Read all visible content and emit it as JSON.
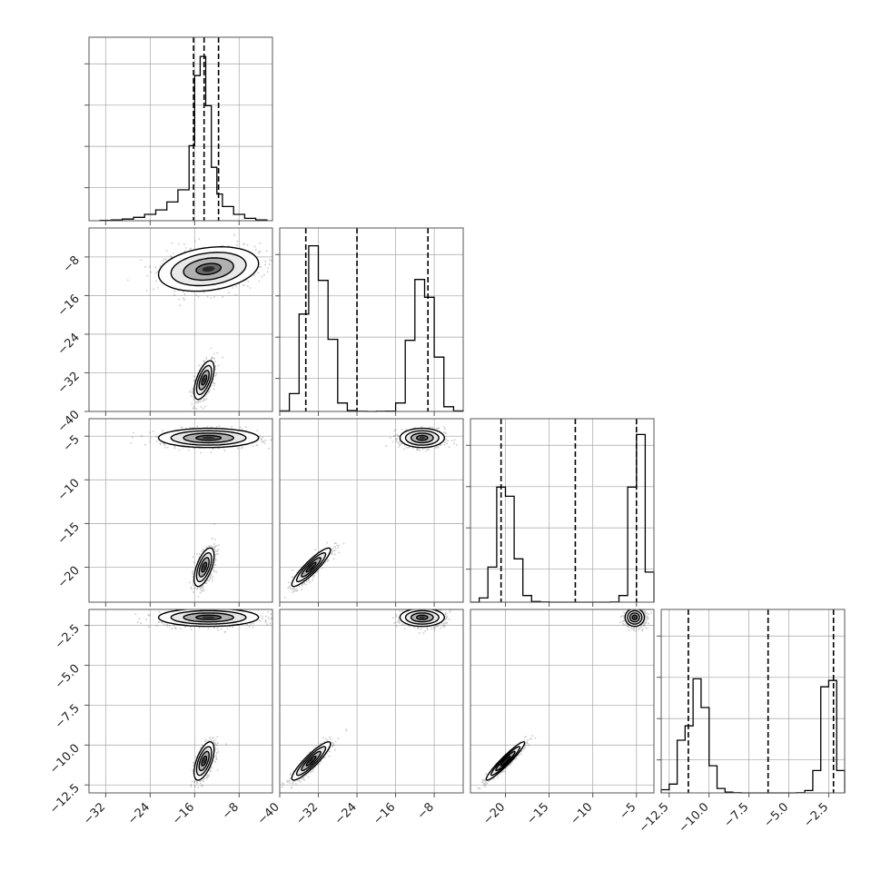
{
  "colors": {
    "frame": "#555555",
    "grid": "#b0b0b0",
    "line": "#000000",
    "scatter": "#303030",
    "fill_levels": [
      "#ffffff",
      "#e8e8e8",
      "#b0b0b0",
      "#6a6a6a",
      "#2a2a2a"
    ]
  },
  "chart_data": {
    "type": "corner",
    "grid": true,
    "parameters": [
      {
        "range": [
          -35,
          -2
        ],
        "ticks": [
          -32,
          -24,
          -16,
          -8
        ],
        "tick_labels": [
          "−32",
          "−24",
          "−16",
          "−8"
        ],
        "quantiles": [
          -16.2,
          -14.3,
          -11.7
        ],
        "histogram": {
          "edges": [
            -33,
            -31,
            -29,
            -27,
            -25,
            -23,
            -21,
            -19,
            -17,
            -16,
            -15,
            -14,
            -13,
            -12,
            -11,
            -9,
            -7,
            -5,
            -3
          ],
          "counts": [
            2,
            5,
            10,
            20,
            38,
            65,
            112,
            185,
            450,
            870,
            985,
            690,
            320,
            160,
            85,
            38,
            14,
            5
          ],
          "ylim": [
            0,
            1100
          ]
        }
      },
      {
        "range": [
          -40,
          -2
        ],
        "ticks": [
          -40,
          -32,
          -24,
          -16,
          -8
        ],
        "tick_labels": [
          "−40",
          "−32",
          "−24",
          "−16",
          "−8"
        ],
        "quantiles": [
          -34.6,
          -24.0,
          -9.3
        ],
        "histogram": {
          "edges": [
            -40,
            -38,
            -36,
            -34,
            -32,
            -30,
            -28,
            -26,
            -24,
            -22,
            -20,
            -18,
            -16,
            -14,
            -12,
            -10,
            -8,
            -6,
            -4,
            -2
          ],
          "counts": [
            3,
            95,
            520,
            885,
            700,
            385,
            45,
            5,
            1,
            0,
            1,
            2,
            45,
            380,
            705,
            610,
            290,
            25,
            3
          ],
          "ylim": [
            0,
            980
          ]
        }
      },
      {
        "range": [
          -24,
          -3
        ],
        "ticks": [
          -20,
          -15,
          -10,
          -5
        ],
        "tick_labels": [
          "−20",
          "−15",
          "−10",
          "−5"
        ],
        "quantiles": [
          -20.5,
          -12.0,
          -5.0
        ],
        "histogram": {
          "edges": [
            -24,
            -23,
            -22,
            -21,
            -20,
            -19,
            -18,
            -17,
            -16,
            -15,
            -14,
            -13,
            -12,
            -11,
            -10,
            -9,
            -8,
            -7,
            -6,
            -5,
            -4,
            -3
          ],
          "counts": [
            0,
            25,
            210,
            690,
            635,
            260,
            40,
            4,
            1,
            0,
            0,
            0,
            0,
            0,
            0,
            0,
            1,
            40,
            690,
            1005,
            180
          ],
          "ylim": [
            0,
            1100
          ]
        }
      },
      {
        "range": [
          -13,
          -1.5
        ],
        "ticks": [
          -12.5,
          -10.0,
          -7.5,
          -5.0,
          -2.5
        ],
        "tick_labels": [
          "−12.5",
          "−10.0",
          "−7.5",
          "−5.0",
          "−2.5"
        ],
        "quantiles": [
          -11.3,
          -6.3,
          -2.2
        ],
        "histogram": {
          "edges": [
            -13,
            -12.5,
            -12,
            -11.5,
            -11,
            -10.5,
            -10,
            -9.5,
            -9,
            -8.5,
            -8,
            -7.5,
            -7,
            -6.5,
            -6,
            -5.5,
            -5,
            -4.5,
            -4,
            -3.5,
            -3,
            -2.5,
            -2,
            -1.5
          ],
          "counts": [
            20,
            55,
            330,
            420,
            715,
            535,
            170,
            28,
            5,
            1,
            0,
            0,
            0,
            0,
            0,
            0,
            0,
            1,
            15,
            140,
            665,
            705,
            140
          ],
          "ylim": [
            0,
            1150
          ]
        }
      }
    ],
    "modes": [
      {
        "weight": 0.5,
        "mean": [
          -13.5,
          -10.5,
          -5.2,
          -2.0
        ],
        "sd": [
          4.5,
          2.3,
          0.55,
          0.28
        ]
      },
      {
        "weight": 0.5,
        "mean": [
          -14.3,
          -33.5,
          -20.0,
          -11.0
        ],
        "sd": [
          0.9,
          2.0,
          1.1,
          0.6
        ]
      }
    ],
    "correlations": {
      "mode0": [
        [
          0,
          1,
          0.25
        ]
      ],
      "mode1": [
        [
          0,
          1,
          0.6
        ],
        [
          0,
          2,
          0.6
        ],
        [
          0,
          3,
          0.6
        ],
        [
          1,
          2,
          0.9
        ],
        [
          1,
          3,
          0.9
        ],
        [
          2,
          3,
          0.95
        ]
      ]
    },
    "contour_levels_sigma": [
      0.5,
      1.0,
      1.5,
      2.0
    ]
  }
}
